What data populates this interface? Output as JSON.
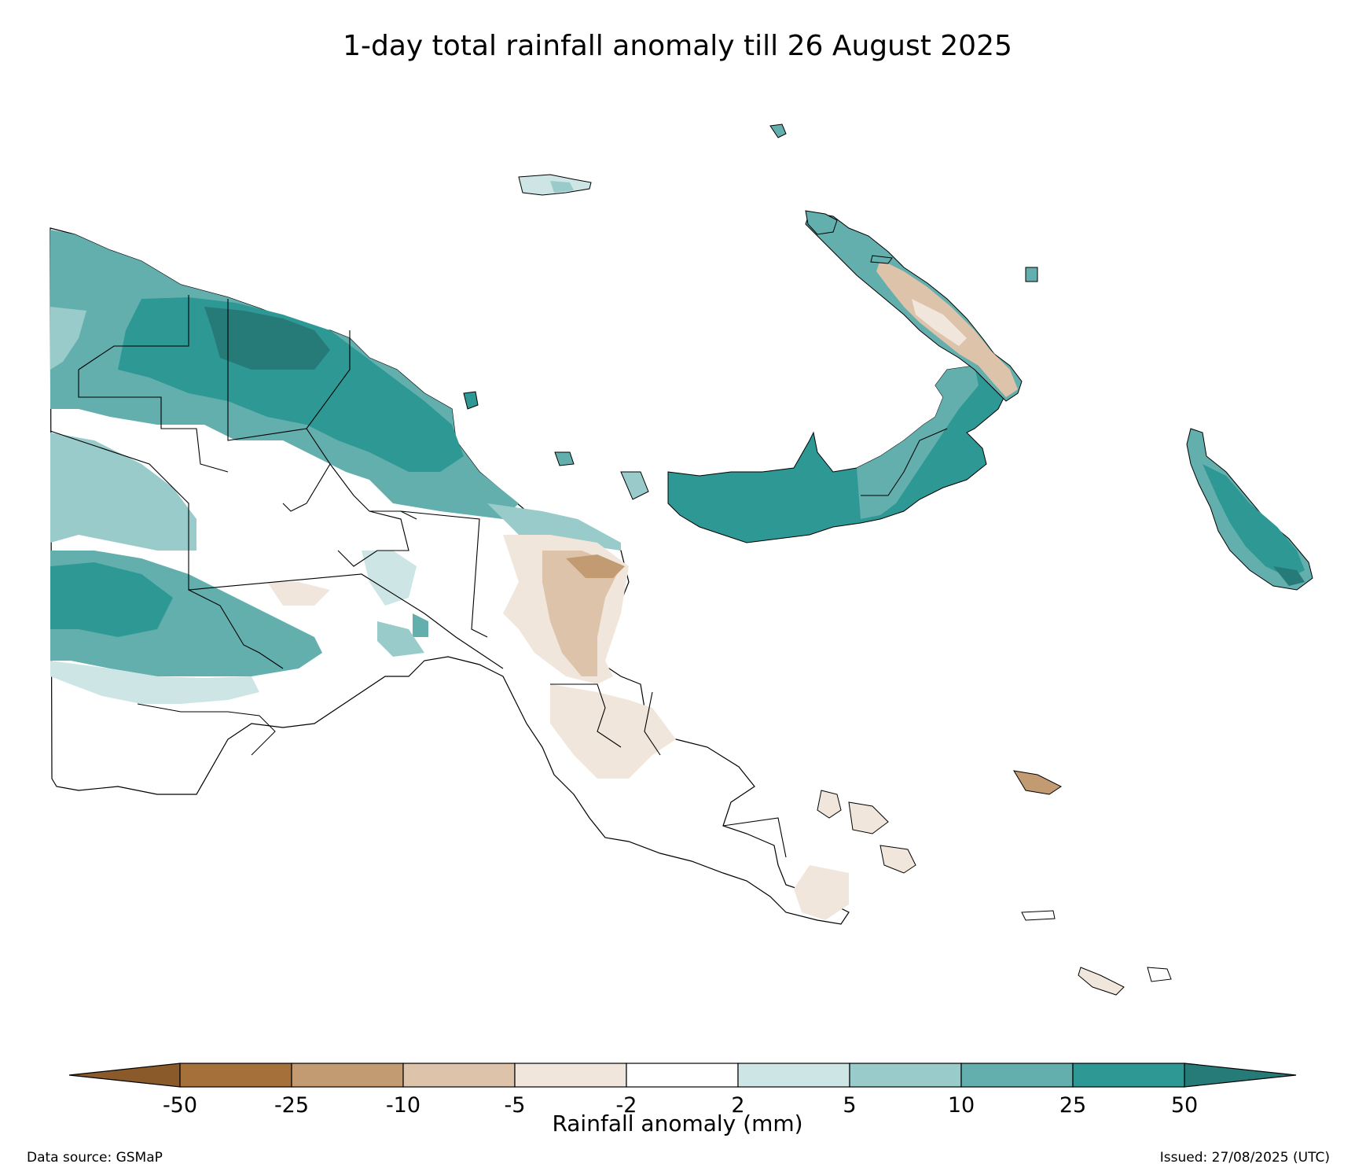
{
  "title": "1-day total rainfall anomaly till 26 August 2025",
  "colorbar": {
    "label": "Rainfall anomaly (mm)",
    "ticks": [
      "-50",
      "-25",
      "-10",
      "-5",
      "-2",
      "2",
      "5",
      "10",
      "25",
      "50"
    ],
    "colors": [
      "#a6703a",
      "#c39b73",
      "#dcc3a9",
      "#f1e6dc",
      "#ffffff",
      "#cde6e5",
      "#99cbca",
      "#63afad",
      "#2e9895"
    ],
    "extend_low_color": "#8a5a2b",
    "extend_high_color": "#267a78"
  },
  "footer": {
    "source": "Data source: GSMaP",
    "issued": "Issued: 27/08/2025 (UTC)"
  },
  "colors": {
    "c50": "#267a78",
    "c25": "#2e9895",
    "c10": "#63afad",
    "c5": "#99cbca",
    "c2": "#cde6e5",
    "n2": "#f1e6dc",
    "n5": "#dcc3a9",
    "n10": "#c39b73"
  }
}
